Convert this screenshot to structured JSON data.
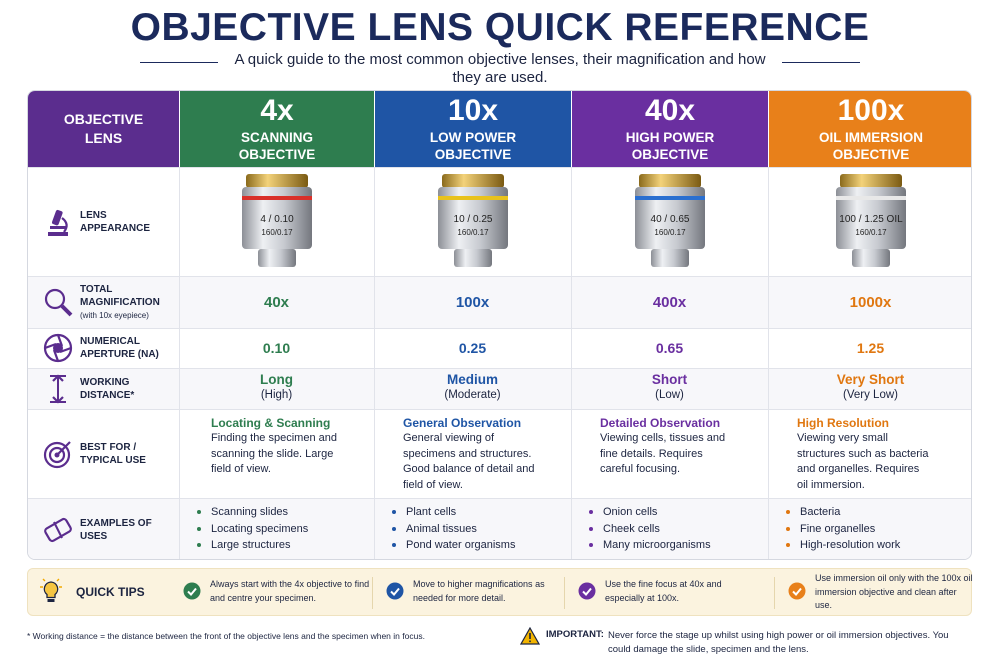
{
  "header": {
    "title": "OBJECTIVE LENS QUICK REFERENCE",
    "subtitle": "A quick guide to the most common objective lenses, their magnification and how they are used."
  },
  "table": {
    "corner": "OBJECTIVE LENS",
    "columns": [
      {
        "magnification": "4x",
        "name": "SCANNING OBJECTIVE",
        "color": "#2e7d4f",
        "lens_label": "4 / 0.10",
        "lens_spec": "160/0.17",
        "band": "#d9302a"
      },
      {
        "magnification": "10x",
        "name": "LOW POWER OBJECTIVE",
        "color": "#1f55a5",
        "lens_label": "10 / 0.25",
        "lens_spec": "160/0.17",
        "band": "#e8c21c"
      },
      {
        "magnification": "40x",
        "name": "HIGH POWER OBJECTIVE",
        "color": "#6a2fa0",
        "lens_label": "40 / 0.65",
        "lens_spec": "160/0.17",
        "band": "#2a6fd0"
      },
      {
        "magnification": "100x",
        "name": "OIL IMMERSION OBJECTIVE",
        "color": "#e8801a",
        "lens_label": "100 / 1.25 OIL",
        "lens_spec": "160/0.17",
        "band": "#e8e8e8"
      }
    ],
    "rows": {
      "appearance": {
        "label": "LENS APPEARANCE"
      },
      "total_magnification": {
        "label": "TOTAL MAGNIFICATION",
        "note": "(with 10x eyepiece)",
        "values": [
          "40x",
          "100x",
          "400x",
          "1000x"
        ]
      },
      "numerical_aperture": {
        "label": "NUMERICAL APERTURE (NA)",
        "values": [
          "0.10",
          "0.25",
          "0.65",
          "1.25"
        ]
      },
      "working_distance": {
        "label": "WORKING DISTANCE*",
        "values": [
          {
            "main": "Long",
            "sub": "(High)"
          },
          {
            "main": "Medium",
            "sub": "(Moderate)"
          },
          {
            "main": "Short",
            "sub": "(Low)"
          },
          {
            "main": "Very Short",
            "sub": "(Very Low)"
          }
        ]
      },
      "best_for": {
        "label": "BEST FOR / TYPICAL USE",
        "values": [
          {
            "heading": "Locating & Scanning",
            "text": "Finding the specimen and scanning the slide. Large field of view."
          },
          {
            "heading": "General Observation",
            "text": "General viewing of specimens and structures. Good balance of detail and field of view."
          },
          {
            "heading": "Detailed Observation",
            "text": "Viewing cells, tissues and fine details. Requires careful focusing."
          },
          {
            "heading": "High Resolution",
            "text": "Viewing very small structures such as bacteria and organelles. Requires oil immersion."
          }
        ]
      },
      "examples": {
        "label": "EXAMPLES OF USES",
        "values": [
          [
            "Scanning slides",
            "Locating specimens",
            "Large structures"
          ],
          [
            "Plant cells",
            "Animal tissues",
            "Pond water organisms"
          ],
          [
            "Onion cells",
            "Cheek cells",
            "Many microorganisms"
          ],
          [
            "Bacteria",
            "Fine organelles",
            "High-resolution work"
          ]
        ]
      }
    }
  },
  "tips": {
    "label": "QUICK TIPS",
    "items": [
      "Always start with the 4x objective to find and centre your specimen.",
      "Move to higher magnifications as needed for more detail.",
      "Use the fine focus at 40x and especially at 100x.",
      "Use immersion oil only with the 100x oil immersion objective and clean after use."
    ]
  },
  "footnote": "* Working distance = the distance between the front of the objective lens and the specimen when in focus.",
  "important": {
    "label": "IMPORTANT:",
    "text": "Never force the stage up whilst using high power or oil immersion objectives. You could damage the slide, specimen and the lens."
  }
}
